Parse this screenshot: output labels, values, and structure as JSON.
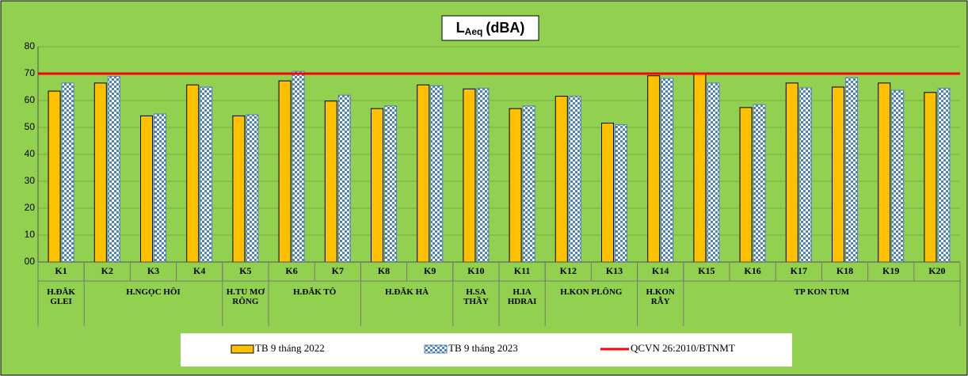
{
  "chart_data": {
    "type": "bar",
    "title": {
      "main": "L",
      "sub": "Aeq",
      "rest": "(dBA)"
    },
    "categories": [
      "K1",
      "K2",
      "K3",
      "K4",
      "K5",
      "K6",
      "K7",
      "K8",
      "K9",
      "K10",
      "K11",
      "K12",
      "K13",
      "K14",
      "K15",
      "K16",
      "K17",
      "K18",
      "K19",
      "K20"
    ],
    "groups": [
      {
        "label": "H.ĐĂK GLEI",
        "span": 1
      },
      {
        "label": "H.NGỌC HỒI",
        "span": 3
      },
      {
        "label": "H.TU MƠ RÔNG",
        "span": 1
      },
      {
        "label": "H.ĐĂK TÔ",
        "span": 2
      },
      {
        "label": "H.ĐĂK HÀ",
        "span": 2
      },
      {
        "label": "H.SA THẦY",
        "span": 1
      },
      {
        "label": "H.IA HDRAI",
        "span": 1
      },
      {
        "label": "H.KON PLÔNG",
        "span": 2
      },
      {
        "label": "H.KON RẪY",
        "span": 1
      },
      {
        "label": "TP KON TUM",
        "span": 6
      }
    ],
    "series": [
      {
        "name": "TB 9 tháng 2022",
        "color": "#ffc000",
        "pattern": false,
        "values": [
          63.5,
          66.5,
          54.3,
          65.8,
          54.3,
          67.3,
          59.8,
          57.0,
          65.8,
          64.3,
          57.0,
          61.6,
          51.6,
          69.2,
          70.2,
          57.4,
          66.5,
          65.0,
          66.5,
          63.0
        ]
      },
      {
        "name": "TB 9 tháng 2023",
        "color": "#4f81bd",
        "pattern": true,
        "values": [
          66.5,
          69.0,
          55.0,
          65.0,
          54.7,
          70.8,
          62.0,
          58.0,
          65.5,
          64.5,
          58.0,
          61.6,
          51.0,
          68.2,
          66.5,
          58.5,
          64.7,
          68.5,
          63.8,
          64.5
        ]
      }
    ],
    "reference_line": {
      "name": "QCVN 26:2010/BTNMT",
      "value": 70,
      "color": "#ff0000"
    },
    "ylim": [
      0,
      80
    ],
    "yticks": [
      {
        "value": 0,
        "label": "00"
      },
      10,
      20,
      30,
      40,
      50,
      60,
      70,
      80
    ],
    "grid": true
  }
}
